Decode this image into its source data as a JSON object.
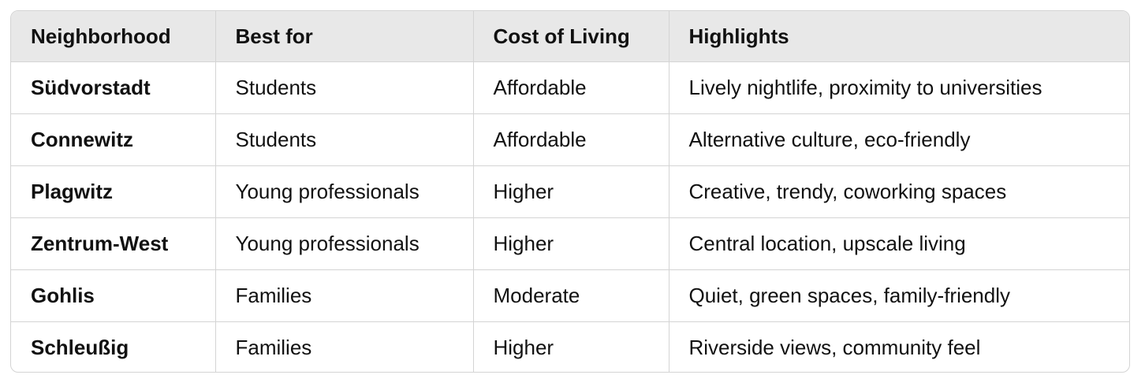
{
  "table": {
    "headers": [
      "Neighborhood",
      "Best for",
      "Cost of Living",
      "Highlights"
    ],
    "rows": [
      [
        "Südvorstadt",
        "Students",
        "Affordable",
        "Lively nightlife, proximity to universities"
      ],
      [
        "Connewitz",
        "Students",
        "Affordable",
        "Alternative culture, eco-friendly"
      ],
      [
        "Plagwitz",
        "Young professionals",
        "Higher",
        "Creative, trendy, coworking spaces"
      ],
      [
        "Zentrum-West",
        "Young professionals",
        "Higher",
        "Central location, upscale living"
      ],
      [
        "Gohlis",
        "Families",
        "Moderate",
        "Quiet, green spaces, family-friendly"
      ],
      [
        "Schleußig",
        "Families",
        "Higher",
        "Riverside views, community feel"
      ]
    ]
  }
}
